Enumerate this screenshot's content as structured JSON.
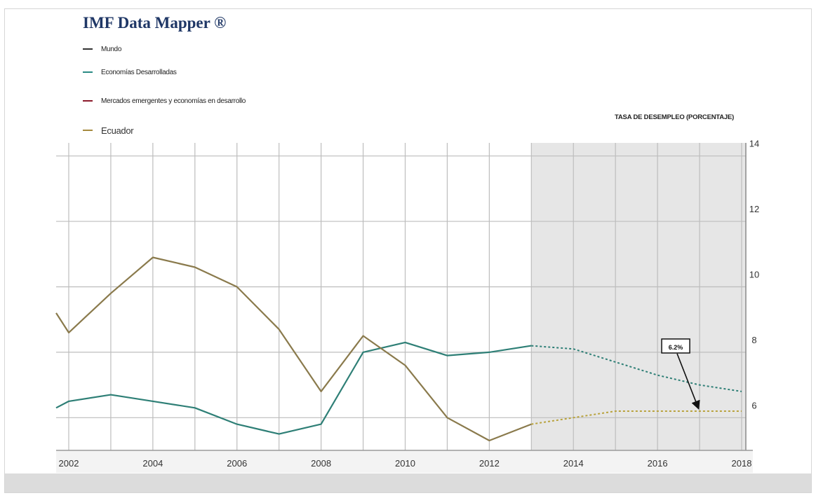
{
  "header": {
    "title": "IMF Data Mapper ®"
  },
  "legend": [
    {
      "label": "Mundo",
      "color": "#333333"
    },
    {
      "label": "Economías Desarrolladas",
      "color": "#2a8a84"
    },
    {
      "label": "Mercados emergentes y economías en desarrollo",
      "color": "#8b1a2b"
    },
    {
      "label": "Ecuador",
      "color": "#a68a3e"
    }
  ],
  "colors": {
    "forecast_shade": "#e6e6e6",
    "grid": "#bdbdbd",
    "developed": "#2e7f76",
    "ecuador": "#8a7a4c",
    "ecuador_forecast": "#b8a23c"
  },
  "chart_data": {
    "type": "line",
    "title": "",
    "subtitle": "TASA DE DESEMPLEO (PORCENTAJE)",
    "xlabel": "",
    "ylabel": "",
    "xlim": [
      2001.7,
      2018.1
    ],
    "ylim": [
      5.0,
      14.4
    ],
    "x_ticks": [
      2002,
      2004,
      2006,
      2008,
      2010,
      2012,
      2014,
      2016,
      2018
    ],
    "y_ticks": [
      6,
      8,
      10,
      12,
      14
    ],
    "grid": true,
    "forecast_start": 2013,
    "series": [
      {
        "name": "Economías Desarrolladas",
        "x": [
          2001.7,
          2002,
          2003,
          2004,
          2005,
          2006,
          2007,
          2008,
          2009,
          2010,
          2011,
          2012,
          2013,
          2014,
          2015,
          2016,
          2017,
          2018
        ],
        "values": [
          6.3,
          6.5,
          6.7,
          6.5,
          6.3,
          5.8,
          5.5,
          5.8,
          8.0,
          8.3,
          7.9,
          8.0,
          8.2,
          8.1,
          7.7,
          7.3,
          7.0,
          6.8
        ],
        "forecast_from": 2013
      },
      {
        "name": "Ecuador",
        "x": [
          2001.7,
          2002,
          2003,
          2004,
          2005,
          2006,
          2007,
          2008,
          2009,
          2010,
          2011,
          2012,
          2013,
          2014,
          2015,
          2016,
          2017,
          2018
        ],
        "values": [
          9.2,
          8.6,
          9.8,
          10.9,
          10.6,
          10.0,
          8.7,
          6.8,
          8.5,
          7.6,
          6.0,
          5.3,
          5.8,
          6.0,
          6.2,
          6.2,
          6.2,
          6.2
        ],
        "forecast_from": 2013
      }
    ],
    "annotations": [
      {
        "text": "6.2%",
        "x": 2017,
        "y": 6.2
      }
    ]
  }
}
